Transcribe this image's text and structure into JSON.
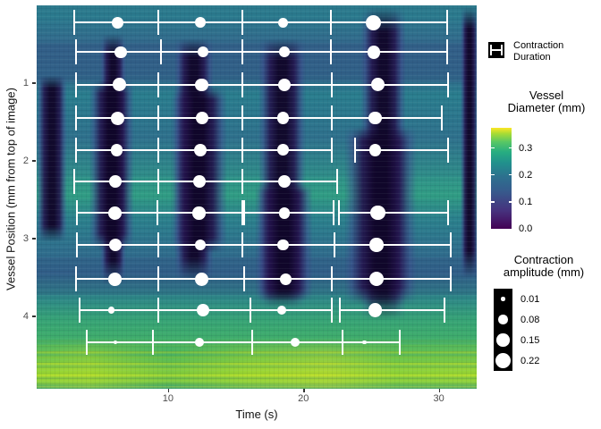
{
  "axes": {
    "x": {
      "title": "Time (s)"
    },
    "y": {
      "title": "Vessel Position (mm from top of image)"
    }
  },
  "legend": {
    "duration": {
      "line1": "Contraction",
      "line2": "Duration"
    },
    "diameter": {
      "title": "Vessel\nDiameter (mm)"
    },
    "amplitude": {
      "title": "Contraction\namplitude (mm)"
    }
  },
  "chart_data": {
    "type": "heatmap",
    "title": "",
    "x": {
      "label": "Time (s)",
      "range": [
        0.3,
        32.8
      ],
      "ticks": [
        10,
        20,
        30
      ]
    },
    "y": {
      "label": "Vessel Position (mm from top of image)",
      "range": [
        0.0,
        4.93
      ],
      "ticks": [
        1,
        2,
        3,
        4
      ],
      "direction": "down"
    },
    "color": {
      "label": "Vessel Diameter (mm)",
      "palette": "viridis",
      "range": [
        0.0,
        0.375
      ],
      "ticks": [
        0.0,
        0.1,
        0.2,
        0.3
      ],
      "stops": [
        [
          0,
          "#440154"
        ],
        [
          0.18,
          "#46327e"
        ],
        [
          0.38,
          "#365c8d"
        ],
        [
          0.52,
          "#2c718e"
        ],
        [
          0.65,
          "#21908d"
        ],
        [
          0.76,
          "#27ad81"
        ],
        [
          0.86,
          "#58c765"
        ],
        [
          0.94,
          "#a5db36"
        ],
        [
          1,
          "#fde725"
        ]
      ]
    },
    "size": {
      "label": "Contraction amplitude (mm)",
      "breaks": [
        0.01,
        0.08,
        0.15,
        0.22
      ]
    },
    "contraction_bands": [
      {
        "t0": 5.0,
        "t1": 6.9,
        "pos0": 0.37,
        "pos1": 3.6
      },
      {
        "t0": 4.2,
        "t1": 7.5,
        "pos0": 0.95,
        "pos1": 3.15
      },
      {
        "t0": 10.5,
        "t1": 13.4,
        "pos0": 0.43,
        "pos1": 3.55
      },
      {
        "t0": 10.2,
        "t1": 14.4,
        "pos0": 1.05,
        "pos1": 3.2
      },
      {
        "t0": 16.7,
        "t1": 20.2,
        "pos0": 0.43,
        "pos1": 3.9
      },
      {
        "t0": 16.4,
        "t1": 20.7,
        "pos0": 2.3,
        "pos1": 3.8
      },
      {
        "t0": 24.2,
        "t1": 27.6,
        "pos0": 0.02,
        "pos1": 4.05
      },
      {
        "t0": 23.0,
        "t1": 28.4,
        "pos0": 1.55,
        "pos1": 3.85
      },
      {
        "t0": 0.3,
        "t1": 2.55,
        "pos0": 0.9,
        "pos1": 3.05
      },
      {
        "t0": 31.6,
        "t1": 32.9,
        "pos0": 0.02,
        "pos1": 3.5
      }
    ],
    "points": [
      {
        "t": 6.3,
        "pos": 0.22,
        "amp": 0.12,
        "bar": [
          3.1,
          9.3
        ]
      },
      {
        "t": 12.4,
        "pos": 0.22,
        "amp": 0.11,
        "bar": [
          9.3,
          15.5
        ]
      },
      {
        "t": 18.5,
        "pos": 0.22,
        "amp": 0.09,
        "bar": [
          15.5,
          22.0
        ]
      },
      {
        "t": 25.2,
        "pos": 0.22,
        "amp": 0.21,
        "bar": [
          22.0,
          30.6
        ]
      },
      {
        "t": 6.5,
        "pos": 0.6,
        "amp": 0.13,
        "bar": [
          3.2,
          9.5
        ]
      },
      {
        "t": 12.6,
        "pos": 0.6,
        "amp": 0.11,
        "bar": [
          9.5,
          15.5
        ]
      },
      {
        "t": 18.6,
        "pos": 0.6,
        "amp": 0.1,
        "bar": [
          15.5,
          22.0
        ]
      },
      {
        "t": 25.2,
        "pos": 0.6,
        "amp": 0.16,
        "bar": [
          22.0,
          30.6
        ]
      },
      {
        "t": 6.4,
        "pos": 1.02,
        "amp": 0.17,
        "bar": [
          3.2,
          9.3
        ]
      },
      {
        "t": 12.5,
        "pos": 1.02,
        "amp": 0.15,
        "bar": [
          9.3,
          15.5
        ]
      },
      {
        "t": 18.6,
        "pos": 1.02,
        "amp": 0.14,
        "bar": [
          15.5,
          22.1
        ]
      },
      {
        "t": 25.5,
        "pos": 1.02,
        "amp": 0.17,
        "bar": [
          22.1,
          30.7
        ]
      },
      {
        "t": 6.3,
        "pos": 1.45,
        "amp": 0.16,
        "bar": [
          3.2,
          9.3
        ]
      },
      {
        "t": 12.5,
        "pos": 1.45,
        "amp": 0.14,
        "bar": [
          9.3,
          15.5
        ]
      },
      {
        "t": 18.5,
        "pos": 1.45,
        "amp": 0.14,
        "bar": [
          15.5,
          22.1
        ]
      },
      {
        "t": 25.3,
        "pos": 1.45,
        "amp": 0.15,
        "bar": [
          22.1,
          30.2
        ]
      },
      {
        "t": 6.2,
        "pos": 1.86,
        "amp": 0.13,
        "bar": [
          3.2,
          9.3
        ]
      },
      {
        "t": 12.4,
        "pos": 1.86,
        "amp": 0.14,
        "bar": [
          9.3,
          15.5
        ]
      },
      {
        "t": 18.5,
        "pos": 1.86,
        "amp": 0.12,
        "bar": [
          15.5,
          22.1
        ]
      },
      {
        "t": 25.3,
        "pos": 1.86,
        "amp": 0.13,
        "bar": [
          23.8,
          30.7
        ]
      },
      {
        "t": 6.1,
        "pos": 2.26,
        "amp": 0.14,
        "bar": [
          3.1,
          9.3
        ]
      },
      {
        "t": 12.3,
        "pos": 2.26,
        "amp": 0.14,
        "bar": [
          9.3,
          15.5
        ]
      },
      {
        "t": 18.6,
        "pos": 2.26,
        "amp": 0.14,
        "bar": [
          15.5,
          22.5
        ]
      },
      {
        "t": 6.1,
        "pos": 2.67,
        "amp": 0.17,
        "bar": [
          3.3,
          9.2
        ]
      },
      {
        "t": 12.3,
        "pos": 2.67,
        "amp": 0.15,
        "bar": [
          9.2,
          15.5
        ]
      },
      {
        "t": 18.6,
        "pos": 2.67,
        "amp": 0.12,
        "bar": [
          15.6,
          22.2
        ]
      },
      {
        "t": 25.5,
        "pos": 2.67,
        "amp": 0.19,
        "bar": [
          22.6,
          30.7
        ]
      },
      {
        "t": 6.1,
        "pos": 3.08,
        "amp": 0.15,
        "bar": [
          3.3,
          9.3
        ]
      },
      {
        "t": 12.4,
        "pos": 3.08,
        "amp": 0.11,
        "bar": [
          9.3,
          15.5
        ]
      },
      {
        "t": 18.5,
        "pos": 3.08,
        "amp": 0.11,
        "bar": [
          15.5,
          22.3
        ]
      },
      {
        "t": 25.4,
        "pos": 3.08,
        "amp": 0.17,
        "bar": [
          22.3,
          30.9
        ]
      },
      {
        "t": 6.1,
        "pos": 3.52,
        "amp": 0.16,
        "bar": [
          3.2,
          9.3
        ]
      },
      {
        "t": 12.5,
        "pos": 3.52,
        "amp": 0.17,
        "bar": [
          9.3,
          15.6
        ]
      },
      {
        "t": 18.7,
        "pos": 3.52,
        "amp": 0.13,
        "bar": [
          15.6,
          22.1
        ]
      },
      {
        "t": 25.4,
        "pos": 3.52,
        "amp": 0.19,
        "bar": [
          22.1,
          30.9
        ]
      },
      {
        "t": 5.8,
        "pos": 3.92,
        "amp": 0.04,
        "bar": [
          3.5,
          9.3
        ]
      },
      {
        "t": 12.6,
        "pos": 3.92,
        "amp": 0.14,
        "bar": [
          9.3,
          16.1
        ]
      },
      {
        "t": 18.4,
        "pos": 3.92,
        "amp": 0.07,
        "bar": [
          16.1,
          22.1
        ]
      },
      {
        "t": 25.3,
        "pos": 3.92,
        "amp": 0.17,
        "bar": [
          22.7,
          30.4
        ]
      },
      {
        "t": 6.1,
        "pos": 4.33,
        "amp": 0.01,
        "bar": [
          4.0,
          8.9
        ]
      },
      {
        "t": 12.3,
        "pos": 4.33,
        "amp": 0.07,
        "bar": [
          8.9,
          16.2
        ]
      },
      {
        "t": 19.4,
        "pos": 4.33,
        "amp": 0.08,
        "bar": [
          16.2,
          22.9
        ]
      },
      {
        "t": 24.5,
        "pos": 4.33,
        "amp": 0.01,
        "bar": [
          22.9,
          27.1
        ]
      }
    ]
  }
}
